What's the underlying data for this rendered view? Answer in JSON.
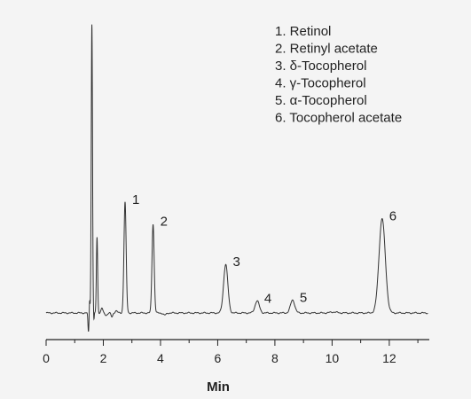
{
  "chart_data": {
    "type": "line",
    "xlabel": "Min",
    "ylabel": "",
    "xlim": [
      0,
      13.4
    ],
    "ylim": [
      0,
      110
    ],
    "xticks": [
      0,
      2,
      4,
      6,
      8,
      10,
      12
    ],
    "grid": false,
    "legend_position": "top-right",
    "legend": [
      "1. Retinol",
      "2. Retinyl acetate",
      "3. δ-Tocopherol",
      "4. γ-Tocopherol",
      "5. α-Tocopherol",
      "6. Tocopherol acetate"
    ],
    "peaks": [
      {
        "label": "1",
        "x": 2.76,
        "y": 41
      },
      {
        "label": "2",
        "x": 3.74,
        "y": 33
      },
      {
        "label": "3",
        "x": 6.28,
        "y": 18
      },
      {
        "label": "4",
        "x": 7.38,
        "y": 4.5
      },
      {
        "label": "5",
        "x": 8.62,
        "y": 4.8
      },
      {
        "label": "6",
        "x": 11.75,
        "y": 35
      }
    ],
    "solvent_peaks": [
      {
        "x": 1.6,
        "y": 107
      },
      {
        "x": 1.78,
        "y": 28
      }
    ],
    "line_color": "#333333"
  }
}
